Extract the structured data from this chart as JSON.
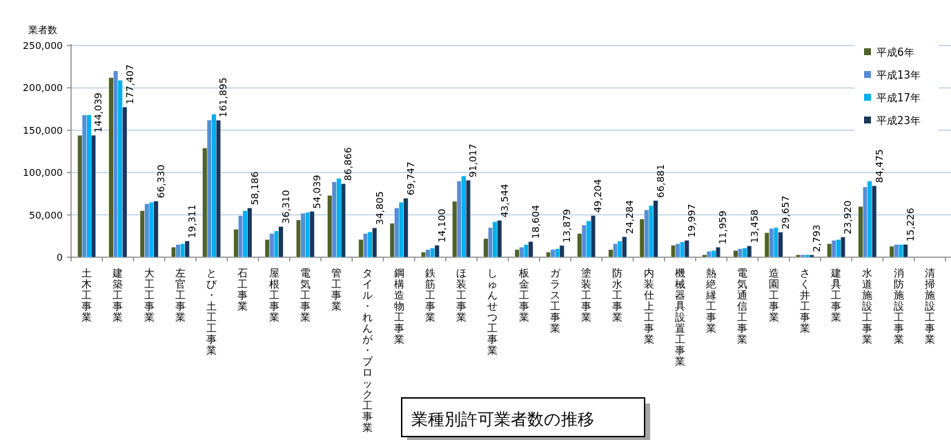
{
  "chart_data": {
    "type": "bar",
    "title": "業種別許可業者数の推移",
    "ylabel": "業者数",
    "categories": [
      "土木工事業",
      "建築工事業",
      "大工工事業",
      "左官工事業",
      "とび・土工工事業",
      "石工事業",
      "屋根工事業",
      "電気工事業",
      "管工事業",
      "タイル・れんが・ブロック工事業",
      "鋼構造物工事業",
      "鉄筋工事業",
      "ほ装工事業",
      "しゅんせつ工事業",
      "板金工事業",
      "ガラス工事業",
      "塗装工事業",
      "防水工事業",
      "内装仕上工事業",
      "機械器具設置工事業",
      "熱絶縁工事業",
      "電気通信工事業",
      "造園工事業",
      "さく井工事業",
      "建具工事業",
      "水道施設工事業",
      "消防施設工事業",
      "清掃施設工事業"
    ],
    "series": [
      {
        "name": "平成6年",
        "color": "#4f6228",
        "values": [
          144000,
          212000,
          55000,
          12000,
          129000,
          33000,
          21000,
          44000,
          73000,
          21000,
          40000,
          6000,
          66000,
          22000,
          9000,
          6000,
          28000,
          9000,
          45000,
          14000,
          3000,
          8000,
          29000,
          3000,
          16000,
          60000,
          13000,
          null
        ]
      },
      {
        "name": "平成13年",
        "color": "#558ed5",
        "values": [
          168000,
          220000,
          63000,
          15000,
          162000,
          49000,
          28000,
          52000,
          89000,
          28000,
          58000,
          9000,
          90000,
          35000,
          12000,
          9000,
          38000,
          16000,
          56000,
          16000,
          7000,
          10000,
          34000,
          3000,
          20000,
          83000,
          15000,
          null
        ]
      },
      {
        "name": "平成17年",
        "color": "#00b0f0",
        "values": [
          168000,
          209000,
          65000,
          16000,
          169000,
          55000,
          31000,
          53000,
          93000,
          30000,
          65000,
          11000,
          96000,
          42000,
          15000,
          10000,
          43000,
          19000,
          61000,
          18000,
          8000,
          11000,
          35000,
          3000,
          21000,
          90000,
          15000,
          null
        ]
      },
      {
        "name": "平成23年",
        "color": "#17375e",
        "values": [
          144039,
          177407,
          66330,
          19311,
          161895,
          58186,
          36310,
          54039,
          86866,
          34805,
          69747,
          14100,
          91017,
          43544,
          18604,
          13879,
          49204,
          24284,
          66881,
          19997,
          11959,
          13458,
          29657,
          2793,
          23920,
          84475,
          15226,
          null
        ],
        "value_labels": [
          "144,039",
          "177,407",
          "66,330",
          "19,311",
          "161,895",
          "58,186",
          "36,310",
          "54,039",
          "86,866",
          "34,805",
          "69,747",
          "14,100",
          "91,017",
          "43,544",
          "18,604",
          "13,879",
          "49,204",
          "24,284",
          "66,881",
          "19,997",
          "11,959",
          "13,458",
          "29,657",
          "2,793",
          "23,920",
          "84,475",
          "15,226",
          null
        ]
      }
    ],
    "ylim": [
      0,
      250000
    ],
    "yticks": [
      0,
      {
        "value": 50000,
        "label": "50,000"
      },
      {
        "value": 100000,
        "label": "100,000"
      },
      {
        "value": 150000,
        "label": "150,000"
      },
      {
        "value": 200000,
        "label": "200,000"
      },
      {
        "value": 250000,
        "label": "250,000"
      }
    ],
    "grid": "y",
    "legend": "top right"
  }
}
